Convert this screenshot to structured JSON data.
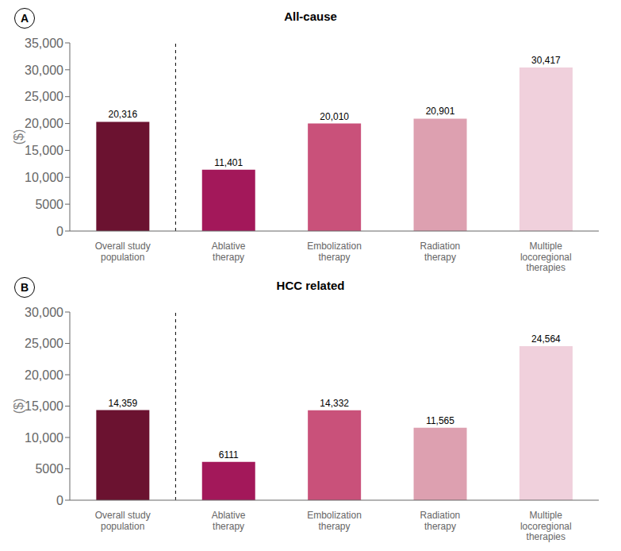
{
  "chart_data": [
    {
      "type": "bar",
      "title": "All-cause",
      "annotations": [
        "A"
      ],
      "ylabel": "($)",
      "categories": [
        "Overall study\npopulation",
        "Ablative\ntherapy",
        "Embolization\ntherapy",
        "Radiation\ntherapy",
        "Multiple\nlocoregional\ntherapies"
      ],
      "values": [
        20316,
        11401,
        20010,
        20901,
        30417
      ],
      "value_labels": [
        "20,316",
        "11,401",
        "20,010",
        "20,901",
        "30,417"
      ],
      "colors": [
        "#6B1230",
        "#A3185A",
        "#C9517A",
        "#DDA0B0",
        "#F0D0DC"
      ],
      "ylim": [
        0,
        35000
      ],
      "yticks": [
        0,
        5000,
        {
          "value": 10000,
          "label": "10,000"
        },
        {
          "value": 15000,
          "label": "15,000"
        },
        {
          "value": 20000,
          "label": "20,000"
        },
        {
          "value": 25000,
          "label": "25,000"
        },
        {
          "value": 30000,
          "label": "30,000"
        },
        {
          "value": 35000,
          "label": "35,000"
        }
      ],
      "data_labels": true,
      "grid": false
    },
    {
      "type": "bar",
      "title": "HCC related",
      "annotations": [
        "B"
      ],
      "ylabel": "($)",
      "categories": [
        "Overall study\npopulation",
        "Ablative\ntherapy",
        "Embolization\ntherapy",
        "Radiation\ntherapy",
        "Multiple\nlocoregional\ntherapies"
      ],
      "values": [
        14359,
        6111,
        14332,
        11565,
        24564
      ],
      "value_labels": [
        "14,359",
        "6111",
        "14,332",
        "11,565",
        "24,564"
      ],
      "colors": [
        "#6B1230",
        "#A3185A",
        "#C9517A",
        "#DDA0B0",
        "#F0D0DC"
      ],
      "ylim": [
        0,
        30000
      ],
      "yticks": [
        0,
        5000,
        {
          "value": 10000,
          "label": "10,000"
        },
        {
          "value": 15000,
          "label": "15,000"
        },
        {
          "value": 20000,
          "label": "20,000"
        },
        {
          "value": 25000,
          "label": "25,000"
        },
        {
          "value": 30000,
          "label": "30,000"
        }
      ],
      "data_labels": true,
      "grid": false
    }
  ]
}
